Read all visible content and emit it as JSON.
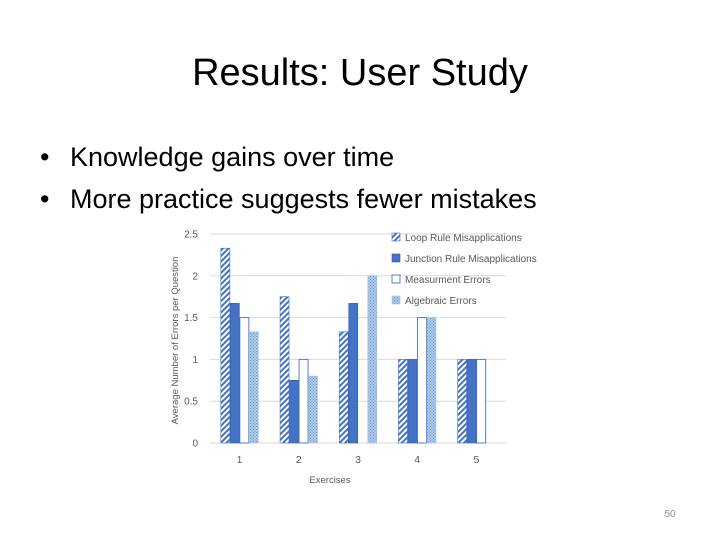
{
  "slide": {
    "title": "Results: User Study",
    "bullets": [
      "Knowledge gains over time",
      "More practice suggests fewer mistakes"
    ],
    "slide_number": "50"
  },
  "colors": {
    "blue": "#4472c4",
    "light_blue": "#9dc3e6",
    "dark_blue": "#2e5ca8",
    "text": "#000000",
    "axis_text": "#595959",
    "grid": "#d9d9d9"
  },
  "chart_data": {
    "type": "bar",
    "title": "",
    "xlabel": "Exercises",
    "ylabel": "Average Number of Errors per Question",
    "categories": [
      "1",
      "2",
      "3",
      "4",
      "5"
    ],
    "ylim": [
      0,
      2.5
    ],
    "yticks": [
      "0",
      "0.5",
      "1",
      "1.5",
      "2",
      "2.5"
    ],
    "grid": true,
    "legend_position": "top-right",
    "series": [
      {
        "name": "Loop Rule Misapplications",
        "style": "diagonal-hatch",
        "values": [
          2.33,
          1.75,
          1.33,
          1.0,
          1.0
        ]
      },
      {
        "name": "Junction Rule Misapplications",
        "style": "solid",
        "values": [
          1.67,
          0.75,
          1.67,
          1.0,
          1.0
        ]
      },
      {
        "name": "Measurment Errors",
        "style": "outline",
        "values": [
          1.5,
          1.0,
          0,
          1.5,
          1.0
        ]
      },
      {
        "name": "Algebraic Errors",
        "style": "dotted",
        "values": [
          1.33,
          0.8,
          2.0,
          1.5,
          0
        ]
      }
    ]
  }
}
